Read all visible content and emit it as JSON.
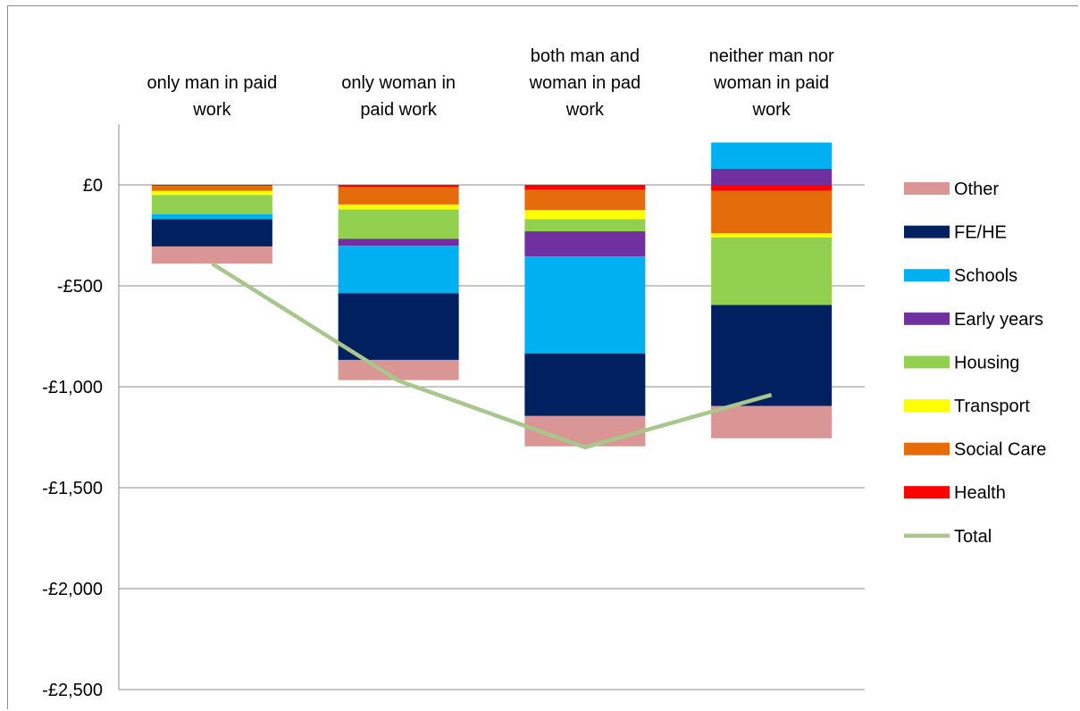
{
  "chart_data": {
    "type": "bar",
    "stacked": true,
    "categories": [
      "only man in paid work",
      "only woman in paid work",
      "both man and woman in pad work",
      "neither man nor woman in paid work"
    ],
    "category_label_lines": [
      [
        "only man in paid",
        "work"
      ],
      [
        "only woman in",
        "paid work"
      ],
      [
        "both man and",
        "woman in pad",
        "work"
      ],
      [
        "neither man nor",
        "woman in paid",
        "work"
      ]
    ],
    "ylim": [
      -2500,
      300
    ],
    "yticks": [
      0,
      -500,
      -1000,
      -1500,
      -2000,
      -2500
    ],
    "ytick_labels": [
      "£0",
      "-£500",
      "-£1,000",
      "-£1,500",
      "-£2,000",
      "-£2,500"
    ],
    "grid": true,
    "legend_position": "right",
    "series": [
      {
        "name": "Health",
        "color": "#ff0000",
        "values": [
          -5,
          -12,
          -25,
          -30
        ]
      },
      {
        "name": "Social Care",
        "color": "#e46c0a",
        "values": [
          -25,
          -85,
          -100,
          -210
        ]
      },
      {
        "name": "Transport",
        "color": "#ffff00",
        "values": [
          -20,
          -25,
          -45,
          -20
        ]
      },
      {
        "name": "Housing",
        "color": "#92d050",
        "values": [
          -95,
          -145,
          -60,
          -335
        ]
      },
      {
        "name": "Early years",
        "color": "#7030a0",
        "values": [
          0,
          -35,
          -125,
          80
        ]
      },
      {
        "name": "Schools",
        "color": "#00b0f0",
        "values": [
          -25,
          -235,
          -480,
          130
        ]
      },
      {
        "name": "FE/HE",
        "color": "#002060",
        "values": [
          -135,
          -330,
          -310,
          -500
        ]
      },
      {
        "name": "Other",
        "color": "#d99694",
        "values": [
          -85,
          -100,
          -150,
          -160
        ]
      }
    ],
    "total": {
      "name": "Total",
      "color": "#a9c68c",
      "values": [
        -390,
        -970,
        -1300,
        -1040
      ]
    },
    "legend_order": [
      "Other",
      "FE/HE",
      "Schools",
      "Early years",
      "Housing",
      "Transport",
      "Social Care",
      "Health",
      "Total"
    ]
  }
}
